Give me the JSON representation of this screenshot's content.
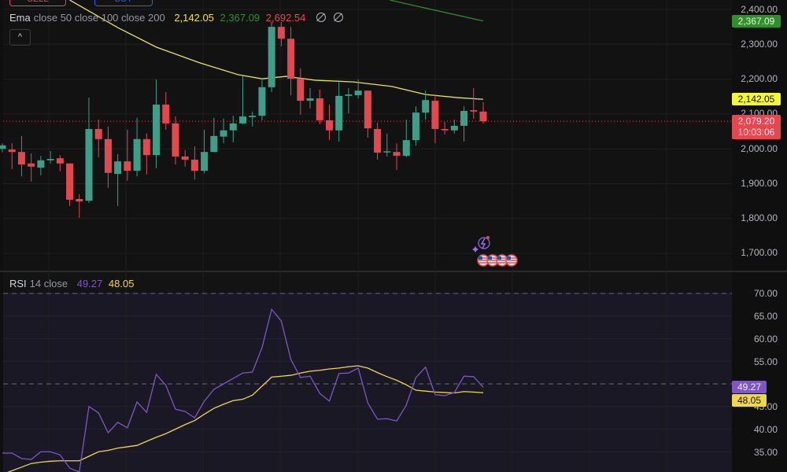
{
  "top_buttons": {
    "sell": "SELL",
    "buy": "BUY"
  },
  "colors": {
    "up": "#3f9e87",
    "down": "#e5474f",
    "ema50": "#e8e44f",
    "ema100": "#2f8f2a",
    "ema200": "#e5474f",
    "rsi": "#7e57c2",
    "rsi_ma": "#f1d54a",
    "bg": "#121212",
    "rsi_band": "#1a1824"
  },
  "main_legend": {
    "name": "Ema",
    "params": "close 50 close 100 close 200",
    "ema50": "2,142.05",
    "ema100": "2,367.09",
    "ema200": "2,692.54",
    "icons": [
      "hide-icon",
      "hide-icon"
    ]
  },
  "collapse_label": "^",
  "price_axis": [
    "2,400.00",
    "2,300.00",
    "2,200.00",
    "2,100.00",
    "2,000.00",
    "1,900.00",
    "1,800.00",
    "1,700.00"
  ],
  "price_badges": {
    "ema100": "2,367.09",
    "ema50": "2,142.05",
    "last": "2,079.20",
    "countdown": "10:03:06"
  },
  "rsi_legend": {
    "name": "RSI",
    "params": "14 close",
    "rsi": "49.27",
    "ma": "48.05"
  },
  "rsi_axis": [
    "70.00",
    "65.00",
    "60.00",
    "55.00",
    "45.00",
    "40.00",
    "35.00"
  ],
  "rsi_badges": {
    "rsi": "49.27",
    "ma": "48.05"
  },
  "events": {
    "icons": [
      "ai-spark-icon",
      "us-flag-icon",
      "us-flag-icon",
      "us-flag-icon",
      "us-flag-icon"
    ]
  },
  "chart_data": {
    "type": "candlestick",
    "ylim": [
      1660,
      2427
    ],
    "price_ticks": [
      2400,
      2300,
      2200,
      2100,
      2000,
      1900,
      1800,
      1700
    ],
    "last_price": 2079.2,
    "grid": true,
    "candles": [
      [
        2000,
        2016,
        1990,
        2010
      ],
      [
        1998,
        2016,
        1942,
        1991
      ],
      [
        1991,
        2037,
        1921,
        1955
      ],
      [
        1958,
        1987,
        1906,
        1949
      ],
      [
        1946,
        1980,
        1924,
        1967
      ],
      [
        1967,
        1994,
        1958,
        1971
      ],
      [
        1973,
        1982,
        1935,
        1958
      ],
      [
        1958,
        1958,
        1836,
        1854
      ],
      [
        1856,
        1870,
        1802,
        1849
      ],
      [
        1851,
        2147,
        1845,
        2057
      ],
      [
        2057,
        2084,
        1976,
        2028
      ],
      [
        2028,
        2064,
        1888,
        1931
      ],
      [
        1928,
        1985,
        1836,
        1964
      ],
      [
        1964,
        2055,
        1908,
        1937
      ],
      [
        1937,
        2089,
        1921,
        2028
      ],
      [
        2028,
        2044,
        1926,
        1982
      ],
      [
        1982,
        2199,
        1944,
        2127
      ],
      [
        2127,
        2163,
        2055,
        2073
      ],
      [
        2073,
        2093,
        1955,
        1978
      ],
      [
        1978,
        1996,
        1949,
        1969
      ],
      [
        1969,
        2007,
        1912,
        1937
      ],
      [
        1937,
        2055,
        1930,
        1991
      ],
      [
        1991,
        2089,
        1991,
        2037
      ],
      [
        2035,
        2087,
        2016,
        2053
      ],
      [
        2053,
        2095,
        2019,
        2073
      ],
      [
        2073,
        2208,
        2071,
        2093
      ],
      [
        2091,
        2107,
        2064,
        2095
      ],
      [
        2095,
        2201,
        2082,
        2177
      ],
      [
        2177,
        2364,
        2163,
        2350
      ],
      [
        2350,
        2364,
        2294,
        2316
      ],
      [
        2316,
        2350,
        2154,
        2201
      ],
      [
        2201,
        2231,
        2098,
        2138
      ],
      [
        2138,
        2174,
        2116,
        2145
      ],
      [
        2145,
        2170,
        2071,
        2082
      ],
      [
        2082,
        2127,
        2025,
        2053
      ],
      [
        2053,
        2197,
        2021,
        2152
      ],
      [
        2152,
        2174,
        2102,
        2156
      ],
      [
        2154,
        2199,
        2145,
        2167
      ],
      [
        2167,
        2167,
        2032,
        2059
      ],
      [
        2057,
        2075,
        1969,
        1989
      ],
      [
        1991,
        2044,
        1978,
        1993
      ],
      [
        1991,
        2016,
        1939,
        1980
      ],
      [
        1980,
        2084,
        1976,
        2025
      ],
      [
        2025,
        2122,
        2009,
        2104
      ],
      [
        2104,
        2167,
        2084,
        2140
      ],
      [
        2138,
        2156,
        2016,
        2057
      ],
      [
        2057,
        2077,
        2041,
        2053
      ],
      [
        2053,
        2084,
        2044,
        2066
      ],
      [
        2066,
        2122,
        2021,
        2109
      ],
      [
        2111,
        2174,
        2086,
        2107
      ],
      [
        2107,
        2134,
        2073,
        2079.2
      ]
    ],
    "ema50": [
      [
        7,
        2427
      ],
      [
        12,
        2348
      ],
      [
        16,
        2292
      ],
      [
        20.5,
        2247
      ],
      [
        24.5,
        2213
      ],
      [
        27,
        2201
      ],
      [
        29.5,
        2208
      ],
      [
        32.5,
        2197
      ],
      [
        36.5,
        2192
      ],
      [
        40.5,
        2179
      ],
      [
        44,
        2156
      ],
      [
        47.3,
        2147
      ],
      [
        50,
        2142.05
      ]
    ],
    "ema100": [
      [
        40.3,
        2427
      ],
      [
        44.3,
        2402
      ],
      [
        50,
        2367.09
      ]
    ],
    "rsi": {
      "ylim": [
        30,
        70
      ],
      "ticks": [
        70,
        65,
        60,
        55,
        45,
        40,
        35
      ],
      "levels": [
        70,
        50,
        30
      ],
      "values": [
        34.7,
        34.7,
        33.5,
        33.3,
        35.0,
        35.0,
        34.3,
        31.4,
        30.5,
        45.0,
        43.6,
        39.2,
        41.5,
        40.3,
        46.0,
        43.7,
        52.1,
        49.7,
        44.4,
        43.9,
        42.5,
        46.2,
        48.8,
        50.0,
        51.2,
        52.4,
        52.6,
        58.0,
        66.5,
        63.9,
        55.4,
        51.4,
        51.7,
        47.9,
        46.2,
        52.3,
        52.4,
        53.5,
        45.8,
        42.2,
        42.3,
        41.8,
        45.3,
        51.4,
        53.7,
        47.6,
        47.4,
        48.1,
        51.7,
        51.6,
        49.27
      ],
      "ma": [
        30.0,
        30.8,
        31.6,
        32.4,
        32.7,
        32.9,
        33.0,
        33.0,
        33.0,
        34.0,
        35.0,
        35.3,
        35.8,
        36.1,
        36.4,
        37.3,
        38.2,
        39.0,
        40.0,
        41.0,
        41.9,
        43.3,
        44.6,
        45.5,
        46.3,
        46.6,
        47.5,
        49.5,
        51.5,
        51.7,
        51.9,
        52.4,
        52.8,
        53.0,
        53.3,
        53.5,
        53.8,
        54.0,
        53.5,
        52.5,
        51.6,
        50.8,
        49.8,
        48.6,
        48.4,
        48.2,
        48.1,
        48.0,
        48.3,
        48.2,
        48.05
      ]
    }
  }
}
